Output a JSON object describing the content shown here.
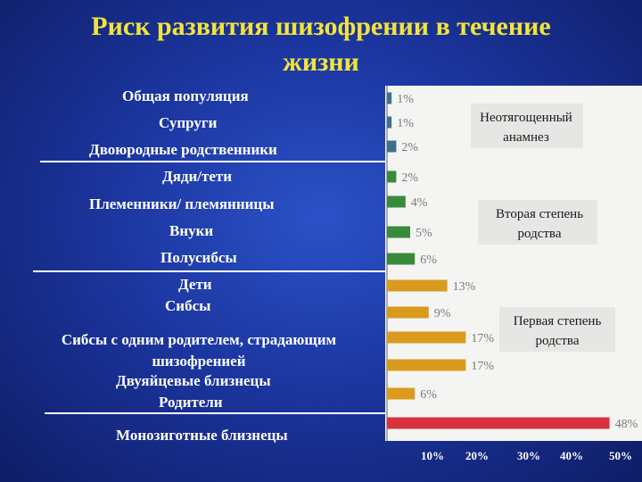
{
  "title": "Риск развития шизофрении в течение жизни",
  "chart_data": {
    "type": "bar",
    "orientation": "horizontal",
    "categories": [
      "Общая популяция",
      "Супруги",
      "Двоюродные родственники",
      "Дяди/тети",
      "Племенники/ племянницы",
      "Внуки",
      "Полусибсы",
      "Дети",
      "Сибсы",
      "Сибсы с одним родителем, страдающим шизофренией",
      "Двуяйцевые близнецы",
      "Родители",
      "Монозиготные близнецы"
    ],
    "values": [
      1,
      1,
      2,
      2,
      4,
      5,
      6,
      13,
      9,
      17,
      17,
      6,
      48
    ],
    "value_labels": [
      "1%",
      "1%",
      "2%",
      "2%",
      "4%",
      "5%",
      "6%",
      "13%",
      "9%",
      "17%",
      "17%",
      "6%",
      "48%"
    ],
    "groups": [
      {
        "label": "Неотягощенный анамнез",
        "color": "#3f6f8a",
        "members": [
          0,
          1,
          2
        ]
      },
      {
        "label": "Вторая степень родства",
        "color": "#3a8a3c",
        "members": [
          3,
          4,
          5,
          6
        ]
      },
      {
        "label": "Первая степень родства",
        "color": "#d99a1e",
        "members": [
          7,
          8,
          9,
          10,
          11
        ]
      },
      {
        "label": "",
        "color": "#d8333d",
        "members": [
          12
        ]
      }
    ],
    "x_ticks": [
      "10%",
      "20%",
      "30%",
      "40%",
      "50%"
    ],
    "xlim": [
      0,
      50
    ]
  }
}
